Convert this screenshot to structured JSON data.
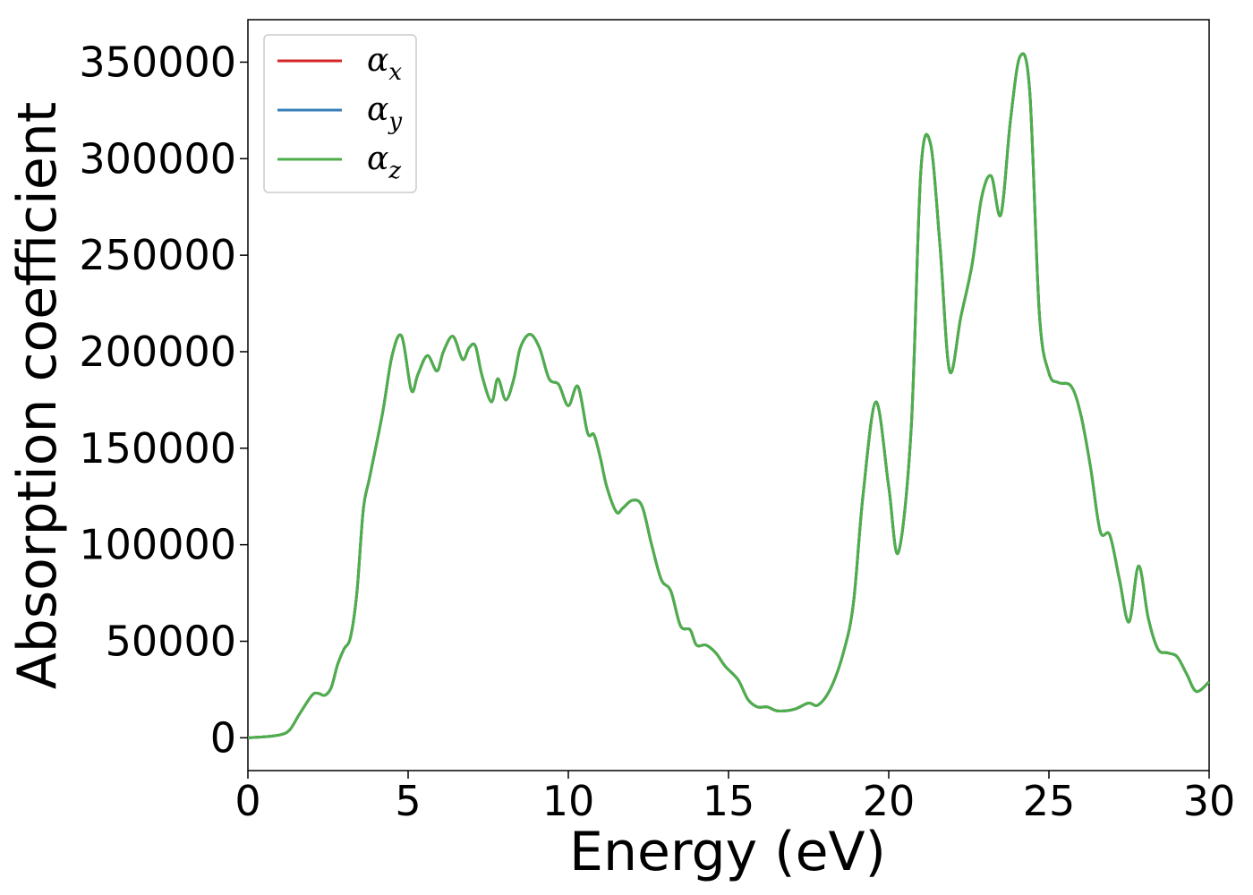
{
  "chart_data": {
    "type": "line",
    "title": "",
    "xlabel": "Energy (eV)",
    "ylabel": "Absorption coefficient",
    "xlim": [
      0,
      30
    ],
    "ylim": [
      -17000,
      372000
    ],
    "xticks": [
      0,
      5,
      10,
      15,
      20,
      25,
      30
    ],
    "yticks": [
      0,
      50000,
      100000,
      150000,
      200000,
      250000,
      300000,
      350000
    ],
    "grid": false,
    "legend_position": "top-left",
    "series": [
      {
        "name": "αx",
        "label_base": "α",
        "label_sub": "x",
        "color": "#d62728",
        "x": [
          0,
          0.5,
          1,
          1.3,
          1.6,
          2,
          2.2,
          2.4,
          2.6,
          2.8,
          3,
          3.2,
          3.4,
          3.6,
          3.8,
          4.2,
          4.5,
          4.8,
          5.1,
          5.3,
          5.6,
          5.9,
          6.1,
          6.4,
          6.7,
          6.9,
          7.1,
          7.3,
          7.6,
          7.8,
          8.05,
          8.3,
          8.5,
          8.8,
          9.1,
          9.4,
          9.7,
          10,
          10.3,
          10.6,
          10.8,
          11,
          11.2,
          11.5,
          11.7,
          12,
          12.3,
          12.6,
          12.9,
          13.2,
          13.5,
          13.8,
          14,
          14.3,
          14.6,
          14.9,
          15.3,
          15.6,
          15.9,
          16.2,
          16.5,
          16.8,
          17.1,
          17.5,
          17.8,
          18.2,
          18.6,
          18.9,
          19.2,
          19.6,
          20,
          20.3,
          20.7,
          21,
          21.3,
          21.6,
          21.9,
          22.25,
          22.6,
          22.9,
          23.2,
          23.5,
          23.8,
          24.1,
          24.4,
          24.7,
          25,
          25.3,
          25.7,
          26,
          26.3,
          26.6,
          26.9,
          27.2,
          27.5,
          27.8,
          28.1,
          28.4,
          28.7,
          29,
          29.3,
          29.6,
          30
        ],
        "values": [
          0,
          500,
          1500,
          4000,
          12000,
          22000,
          23000,
          22000,
          26000,
          38000,
          46000,
          52000,
          75000,
          118000,
          135000,
          168000,
          198000,
          208000,
          180000,
          188000,
          198000,
          190000,
          200000,
          208000,
          196000,
          202000,
          203000,
          188000,
          174000,
          186000,
          175000,
          186000,
          202000,
          209000,
          202000,
          186000,
          183000,
          172000,
          182000,
          158000,
          157000,
          145000,
          130000,
          117000,
          119000,
          123000,
          120000,
          100000,
          82000,
          76000,
          58000,
          56000,
          48000,
          48000,
          44000,
          37000,
          30000,
          20000,
          16000,
          16000,
          14000,
          14000,
          15000,
          18000,
          17000,
          26000,
          45000,
          70000,
          126000,
          174000,
          130000,
          96000,
          160000,
          293000,
          308000,
          255000,
          190000,
          218000,
          245000,
          280000,
          291000,
          271000,
          320000,
          353000,
          335000,
          220000,
          189000,
          184000,
          182000,
          167000,
          140000,
          107000,
          105000,
          82000,
          60000,
          89000,
          62000,
          46000,
          44000,
          42000,
          33000,
          24000,
          29000
        ]
      },
      {
        "name": "αy",
        "label_base": "α",
        "label_sub": "y",
        "color": "#377eb8",
        "x": [
          0,
          0.5,
          1,
          1.3,
          1.6,
          2,
          2.2,
          2.4,
          2.6,
          2.8,
          3,
          3.2,
          3.4,
          3.6,
          3.8,
          4.2,
          4.5,
          4.8,
          5.1,
          5.3,
          5.6,
          5.9,
          6.1,
          6.4,
          6.7,
          6.9,
          7.1,
          7.3,
          7.6,
          7.8,
          8.05,
          8.3,
          8.5,
          8.8,
          9.1,
          9.4,
          9.7,
          10,
          10.3,
          10.6,
          10.8,
          11,
          11.2,
          11.5,
          11.7,
          12,
          12.3,
          12.6,
          12.9,
          13.2,
          13.5,
          13.8,
          14,
          14.3,
          14.6,
          14.9,
          15.3,
          15.6,
          15.9,
          16.2,
          16.5,
          16.8,
          17.1,
          17.5,
          17.8,
          18.2,
          18.6,
          18.9,
          19.2,
          19.6,
          20,
          20.3,
          20.7,
          21,
          21.3,
          21.6,
          21.9,
          22.25,
          22.6,
          22.9,
          23.2,
          23.5,
          23.8,
          24.1,
          24.4,
          24.7,
          25,
          25.3,
          25.7,
          26,
          26.3,
          26.6,
          26.9,
          27.2,
          27.5,
          27.8,
          28.1,
          28.4,
          28.7,
          29,
          29.3,
          29.6,
          30
        ],
        "values": [
          0,
          500,
          1500,
          4000,
          12000,
          22000,
          23000,
          22000,
          26000,
          38000,
          46000,
          52000,
          75000,
          118000,
          135000,
          168000,
          198000,
          208000,
          180000,
          188000,
          198000,
          190000,
          200000,
          208000,
          196000,
          202000,
          203000,
          188000,
          174000,
          186000,
          175000,
          186000,
          202000,
          209000,
          202000,
          186000,
          183000,
          172000,
          182000,
          158000,
          157000,
          145000,
          130000,
          117000,
          119000,
          123000,
          120000,
          100000,
          82000,
          76000,
          58000,
          56000,
          48000,
          48000,
          44000,
          37000,
          30000,
          20000,
          16000,
          16000,
          14000,
          14000,
          15000,
          18000,
          17000,
          26000,
          45000,
          70000,
          126000,
          174000,
          130000,
          96000,
          160000,
          293000,
          308000,
          255000,
          190000,
          218000,
          245000,
          280000,
          291000,
          271000,
          320000,
          353000,
          335000,
          220000,
          189000,
          184000,
          182000,
          167000,
          140000,
          107000,
          105000,
          82000,
          60000,
          89000,
          62000,
          46000,
          44000,
          42000,
          33000,
          24000,
          29000
        ]
      },
      {
        "name": "αz",
        "label_base": "α",
        "label_sub": "z",
        "color": "#4daf4a",
        "x": [
          0,
          0.5,
          1,
          1.3,
          1.6,
          2,
          2.2,
          2.4,
          2.6,
          2.8,
          3,
          3.2,
          3.4,
          3.6,
          3.8,
          4.2,
          4.5,
          4.8,
          5.1,
          5.3,
          5.6,
          5.9,
          6.1,
          6.4,
          6.7,
          6.9,
          7.1,
          7.3,
          7.6,
          7.8,
          8.05,
          8.3,
          8.5,
          8.8,
          9.1,
          9.4,
          9.7,
          10,
          10.3,
          10.6,
          10.8,
          11,
          11.2,
          11.5,
          11.7,
          12,
          12.3,
          12.6,
          12.9,
          13.2,
          13.5,
          13.8,
          14,
          14.3,
          14.6,
          14.9,
          15.3,
          15.6,
          15.9,
          16.2,
          16.5,
          16.8,
          17.1,
          17.5,
          17.8,
          18.2,
          18.6,
          18.9,
          19.2,
          19.6,
          20,
          20.3,
          20.7,
          21,
          21.3,
          21.6,
          21.9,
          22.25,
          22.6,
          22.9,
          23.2,
          23.5,
          23.8,
          24.1,
          24.4,
          24.7,
          25,
          25.3,
          25.7,
          26,
          26.3,
          26.6,
          26.9,
          27.2,
          27.5,
          27.8,
          28.1,
          28.4,
          28.7,
          29,
          29.3,
          29.6,
          30
        ],
        "values": [
          0,
          500,
          1500,
          4000,
          12000,
          22000,
          23000,
          22000,
          26000,
          38000,
          46000,
          52000,
          75000,
          118000,
          135000,
          168000,
          198000,
          208000,
          180000,
          188000,
          198000,
          190000,
          200000,
          208000,
          196000,
          202000,
          203000,
          188000,
          174000,
          186000,
          175000,
          186000,
          202000,
          209000,
          202000,
          186000,
          183000,
          172000,
          182000,
          158000,
          157000,
          145000,
          130000,
          117000,
          119000,
          123000,
          120000,
          100000,
          82000,
          76000,
          58000,
          56000,
          48000,
          48000,
          44000,
          37000,
          30000,
          20000,
          16000,
          16000,
          14000,
          14000,
          15000,
          18000,
          17000,
          26000,
          45000,
          70000,
          126000,
          174000,
          130000,
          96000,
          160000,
          293000,
          308000,
          255000,
          190000,
          218000,
          245000,
          280000,
          291000,
          271000,
          320000,
          353000,
          335000,
          220000,
          189000,
          184000,
          182000,
          167000,
          140000,
          107000,
          105000,
          82000,
          60000,
          89000,
          62000,
          46000,
          44000,
          42000,
          33000,
          24000,
          29000
        ]
      }
    ]
  }
}
